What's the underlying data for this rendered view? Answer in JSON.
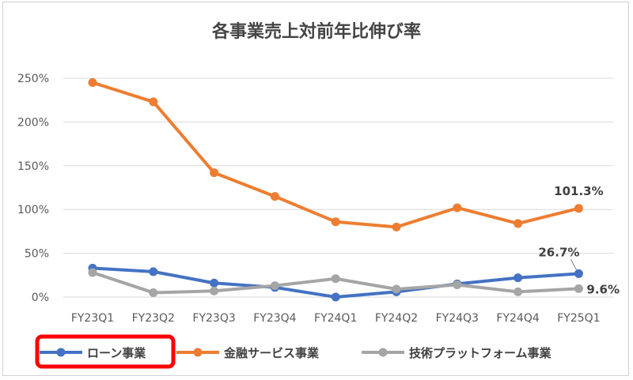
{
  "chart_data": {
    "type": "line",
    "title": "各事業売上対前年比伸び率",
    "categories": [
      "FY23Q1",
      "FY23Q2",
      "FY23Q3",
      "FY23Q4",
      "FY24Q1",
      "FY24Q2",
      "FY24Q3",
      "FY24Q4",
      "FY25Q1"
    ],
    "y_ticks": [
      "0%",
      "50%",
      "100%",
      "150%",
      "200%",
      "250%"
    ],
    "ylim": [
      0,
      250
    ],
    "grid": true,
    "legend_position": "bottom",
    "series": [
      {
        "name": "ローン事業",
        "color": "#4472C4",
        "values": [
          33,
          29,
          16,
          11,
          0,
          6,
          15,
          22,
          26.7
        ],
        "end_label": "26.7%",
        "highlighted": true
      },
      {
        "name": "金融サービス事業",
        "color": "#ED7D31",
        "values": [
          245,
          223,
          142,
          115,
          86,
          80,
          102,
          84,
          101.3
        ],
        "end_label": "101.3%"
      },
      {
        "name": "技術プラットフォーム事業",
        "color": "#A5A5A5",
        "values": [
          28,
          5,
          7,
          13,
          21,
          9,
          14,
          6,
          9.6
        ],
        "end_label": "9.6%"
      }
    ]
  }
}
